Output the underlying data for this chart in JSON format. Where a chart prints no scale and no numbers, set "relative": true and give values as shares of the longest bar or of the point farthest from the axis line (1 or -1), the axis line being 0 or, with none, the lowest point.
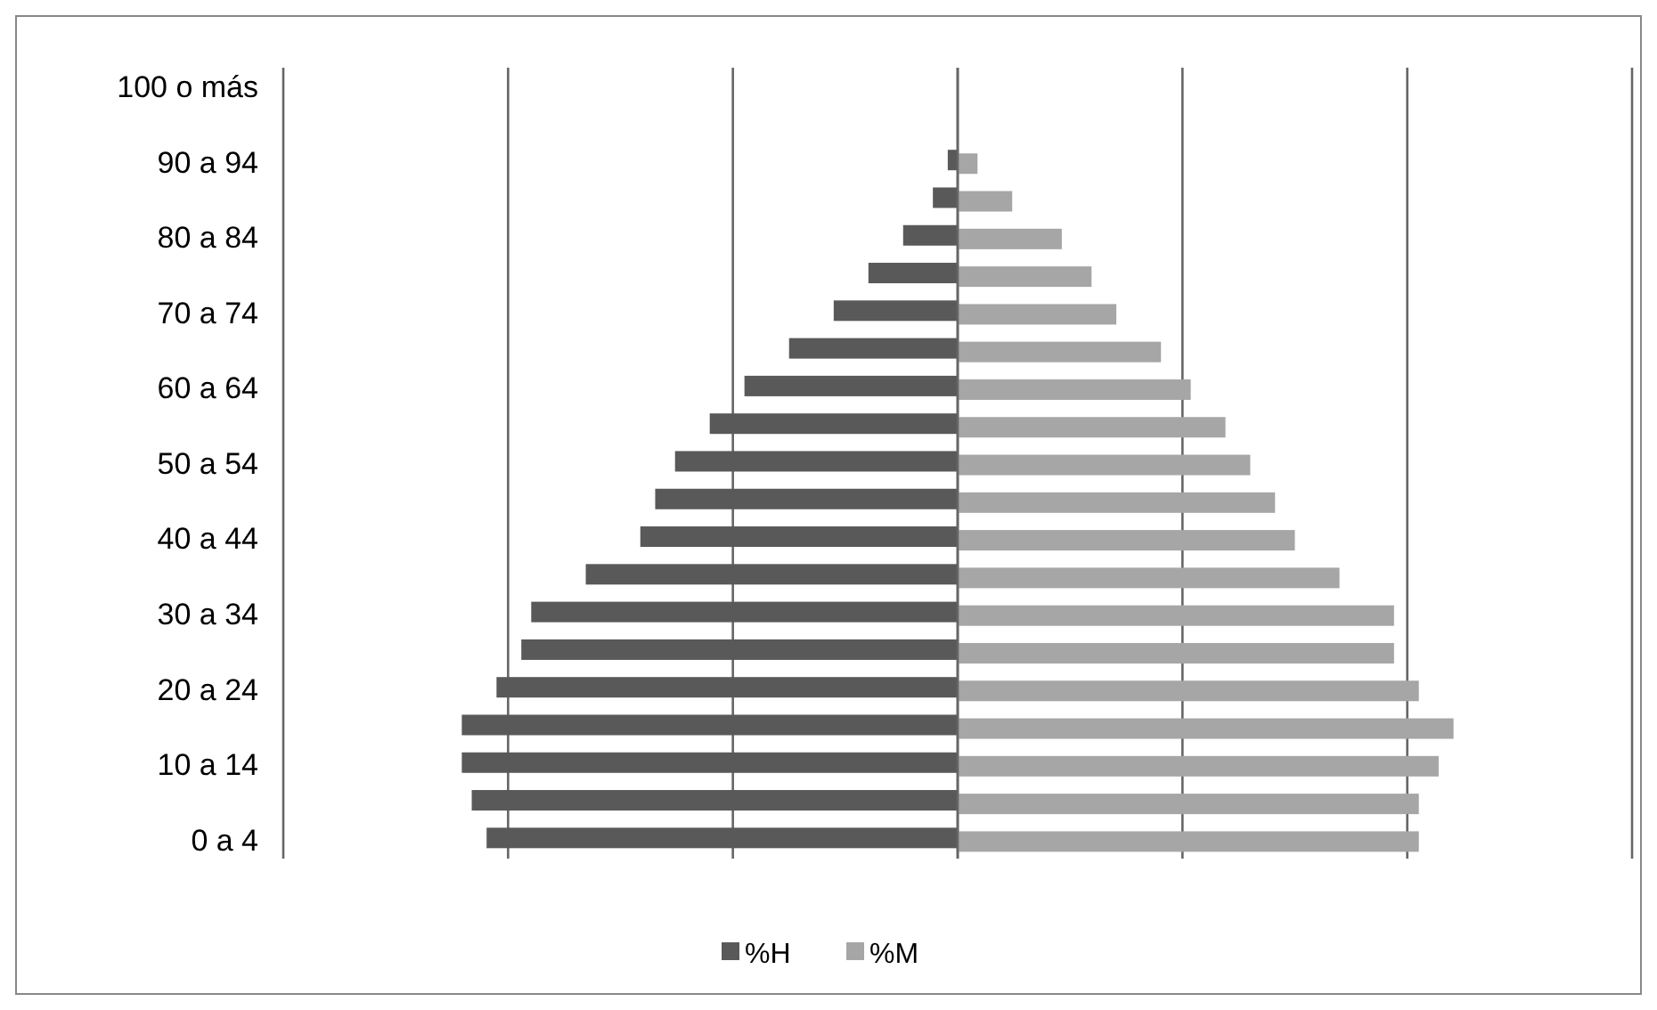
{
  "chart_data": {
    "type": "bar",
    "orientation": "horizontal",
    "relative": true,
    "grid": true,
    "legend": "bottom",
    "categories": [
      "100 o más",
      null,
      "90 a 94",
      null,
      "80 a 84",
      null,
      "70 a 74",
      null,
      "60 a 64",
      null,
      "50 a 54",
      null,
      "40 a 44",
      null,
      "30 a 34",
      null,
      "20 a 24",
      null,
      "10 a 14",
      null,
      "0 a 4"
    ],
    "series": [
      {
        "name": "%H",
        "color": "#595959",
        "values": [
          0,
          0,
          -0.02,
          -0.05,
          -0.11,
          -0.18,
          -0.25,
          -0.34,
          -0.43,
          -0.5,
          -0.57,
          -0.61,
          -0.64,
          -0.75,
          -0.86,
          -0.88,
          -0.93,
          -1,
          -1,
          -0.98,
          -0.95
        ]
      },
      {
        "name": "%M",
        "color": "#a6a6a6",
        "values": [
          0,
          0,
          0.04,
          0.11,
          0.21,
          0.27,
          0.32,
          0.41,
          0.47,
          0.54,
          0.59,
          0.64,
          0.68,
          0.77,
          0.88,
          0.88,
          0.93,
          1,
          0.97,
          0.93,
          0.93
        ]
      }
    ]
  }
}
